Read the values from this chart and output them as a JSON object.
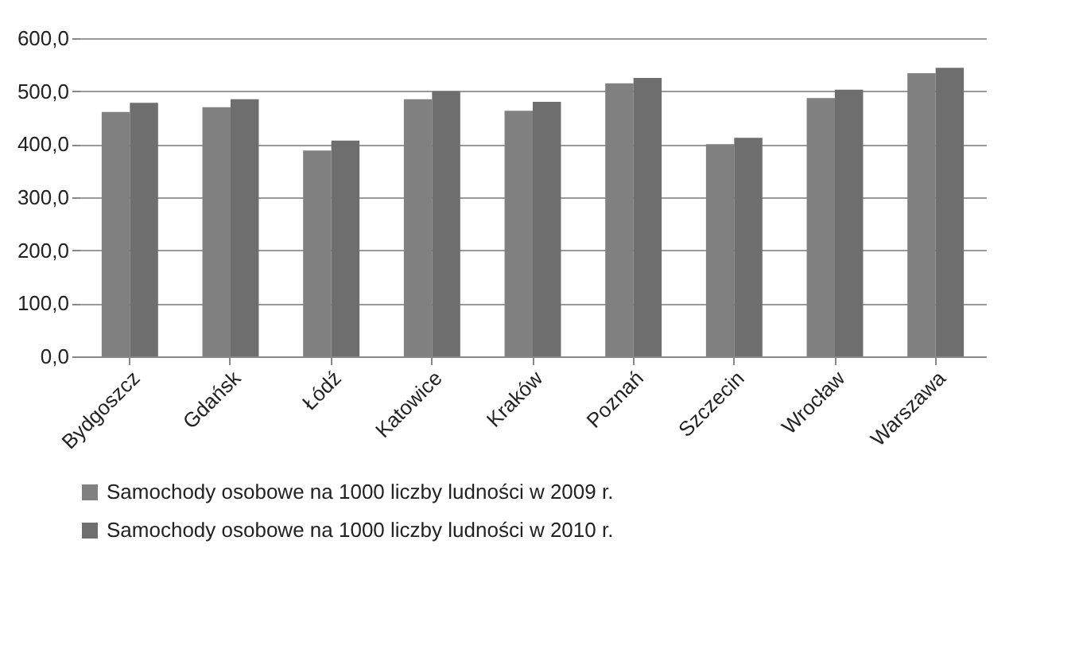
{
  "chart_data": {
    "type": "bar",
    "categories": [
      "Bydgoszcz",
      "Gdańsk",
      "Łódź",
      "Katowice",
      "Kraków",
      "Poznań",
      "Szczecin",
      "Wrocław",
      "Warszawa"
    ],
    "series": [
      {
        "name": "Samochody osobowe na 1000 liczby ludności w 2009 r.",
        "color": "#808080",
        "values": [
          461,
          470,
          388,
          485,
          463,
          515,
          400,
          487,
          534
        ]
      },
      {
        "name": "Samochody osobowe na 1000 liczby ludności w 2010 r.",
        "color": "#6e6e6e",
        "values": [
          478,
          485,
          407,
          500,
          480,
          525,
          412,
          503,
          544
        ]
      }
    ],
    "ylim": [
      0,
      600
    ],
    "yticks": [
      {
        "value": 0,
        "label": "0,0"
      },
      {
        "value": 100,
        "label": "100,0"
      },
      {
        "value": 200,
        "label": "200,0"
      },
      {
        "value": 300,
        "label": "300,0"
      },
      {
        "value": 400,
        "label": "400,0"
      },
      {
        "value": 500,
        "label": "500,0"
      },
      {
        "value": 600,
        "label": "600,0"
      }
    ],
    "grid": "y",
    "legend": "bottom"
  }
}
